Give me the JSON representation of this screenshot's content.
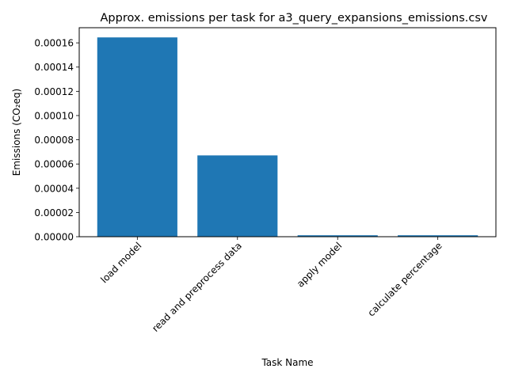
{
  "chart_data": {
    "type": "bar",
    "title": "Approx. emissions per task for a3_query_expansions_emissions.csv",
    "xlabel": "Task Name",
    "ylabel": "Emissions (CO₂eq)",
    "categories": [
      "load model",
      "read and preprocess data",
      "apply model",
      "calculate percentage"
    ],
    "values": [
      0.0001645,
      6.71e-05,
      1.2e-06,
      1.2e-06
    ],
    "ylim": [
      0,
      0.0001725
    ],
    "yticks": [
      "0.00000",
      "0.00002",
      "0.00004",
      "0.00006",
      "0.00008",
      "0.00010",
      "0.00012",
      "0.00014",
      "0.00016"
    ],
    "ytick_values": [
      0,
      2e-05,
      4e-05,
      6e-05,
      8e-05,
      0.0001,
      0.00012,
      0.00014,
      0.00016
    ],
    "bar_color": "#1f77b4",
    "grid": false,
    "legend": false
  }
}
